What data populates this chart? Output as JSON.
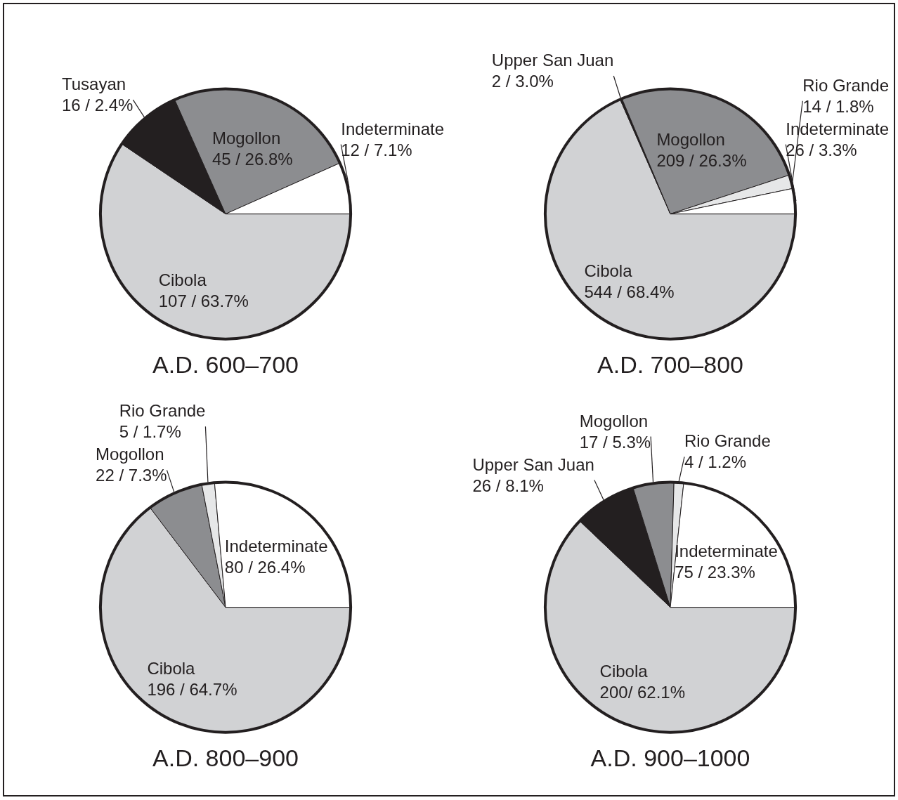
{
  "chart_data": [
    {
      "type": "pie",
      "title": "A.D. 600–700",
      "categories": [
        "Cibola",
        "Tusayan",
        "Mogollon",
        "Indeterminate"
      ],
      "values": [
        107,
        16,
        45,
        12
      ],
      "colors": [
        "#d1d2d4",
        "#231f20",
        "#8c8d90",
        "#ffffff"
      ],
      "value_labels": [
        "107 / 63.7%",
        "16 / 2.4%",
        "45 / 26.8%",
        "12 / 7.1%"
      ]
    },
    {
      "type": "pie",
      "title": "A.D. 700–800",
      "categories": [
        "Cibola",
        "Upper San Juan",
        "Mogollon",
        "Rio Grande",
        "Indeterminate"
      ],
      "values": [
        544,
        2,
        209,
        14,
        26
      ],
      "colors": [
        "#d1d2d4",
        "#231f20",
        "#8c8d90",
        "#e6e7e8",
        "#ffffff"
      ],
      "value_labels": [
        "544 / 68.4%",
        "2 / 3.0%",
        "209 / 26.3%",
        "14 / 1.8%",
        "26 / 3.3%"
      ]
    },
    {
      "type": "pie",
      "title": "A.D. 800–900",
      "categories": [
        "Cibola",
        "Mogollon",
        "Rio Grande",
        "Indeterminate"
      ],
      "values": [
        196,
        22,
        5,
        80
      ],
      "colors": [
        "#d1d2d4",
        "#8c8d90",
        "#e6e7e8",
        "#ffffff"
      ],
      "value_labels": [
        "196 / 64.7%",
        "22 / 7.3%",
        "5 / 1.7%",
        "80 / 26.4%"
      ]
    },
    {
      "type": "pie",
      "title": "A.D. 900–1000",
      "categories": [
        "Cibola",
        "Upper San Juan",
        "Mogollon",
        "Rio Grande",
        "Indeterminate"
      ],
      "values": [
        200,
        26,
        17,
        4,
        75
      ],
      "colors": [
        "#d1d2d4",
        "#231f20",
        "#8c8d90",
        "#e6e7e8",
        "#ffffff"
      ],
      "value_labels": [
        "200/ 62.1%",
        "26 / 8.1%",
        "17 / 5.3%",
        "4 / 1.2%",
        "75 / 23.3%"
      ]
    }
  ]
}
